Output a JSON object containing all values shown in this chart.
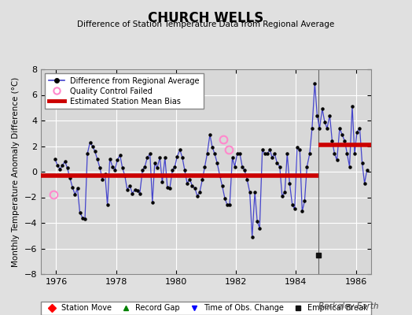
{
  "title": "CHURCH WELLS",
  "subtitle": "Difference of Station Temperature Data from Regional Average",
  "ylabel": "Monthly Temperature Anomaly Difference (°C)",
  "xlim": [
    1975.5,
    1986.5
  ],
  "ylim": [
    -8,
    8
  ],
  "yticks": [
    -8,
    -6,
    -4,
    -2,
    0,
    2,
    4,
    6,
    8
  ],
  "xticks": [
    1976,
    1978,
    1980,
    1982,
    1984,
    1986
  ],
  "fig_bg_color": "#e0e0e0",
  "plot_bg_color": "#d8d8d8",
  "line_color": "#4444cc",
  "marker_color": "#000000",
  "bias_color": "#cc0000",
  "bias_before": -0.3,
  "bias_after": 2.1,
  "break_x": 1984.75,
  "break_marker_x": 1984.75,
  "break_marker_y": -6.5,
  "qc_points": [
    [
      1975.92,
      -1.8
    ],
    [
      1981.58,
      2.55
    ],
    [
      1981.75,
      1.7
    ]
  ],
  "watermark": "Berkeley Earth",
  "time_series": [
    [
      1975.96,
      1.0
    ],
    [
      1976.04,
      0.5
    ],
    [
      1976.13,
      0.2
    ],
    [
      1976.21,
      0.5
    ],
    [
      1976.29,
      0.8
    ],
    [
      1976.37,
      0.3
    ],
    [
      1976.46,
      -0.5
    ],
    [
      1976.54,
      -1.2
    ],
    [
      1976.63,
      -1.8
    ],
    [
      1976.71,
      -1.3
    ],
    [
      1976.79,
      -3.2
    ],
    [
      1976.88,
      -3.6
    ],
    [
      1976.96,
      -3.7
    ],
    [
      1977.04,
      1.4
    ],
    [
      1977.13,
      2.3
    ],
    [
      1977.21,
      2.0
    ],
    [
      1977.29,
      1.6
    ],
    [
      1977.37,
      1.0
    ],
    [
      1977.46,
      0.3
    ],
    [
      1977.54,
      -0.6
    ],
    [
      1977.63,
      -0.2
    ],
    [
      1977.71,
      -2.6
    ],
    [
      1977.79,
      1.0
    ],
    [
      1977.88,
      0.4
    ],
    [
      1977.96,
      0.1
    ],
    [
      1978.04,
      0.9
    ],
    [
      1978.13,
      1.3
    ],
    [
      1978.21,
      0.3
    ],
    [
      1978.29,
      -0.3
    ],
    [
      1978.37,
      -1.4
    ],
    [
      1978.46,
      -1.1
    ],
    [
      1978.54,
      -1.7
    ],
    [
      1978.63,
      -1.4
    ],
    [
      1978.71,
      -1.5
    ],
    [
      1978.79,
      -1.7
    ],
    [
      1978.88,
      0.1
    ],
    [
      1978.96,
      0.4
    ],
    [
      1979.04,
      1.1
    ],
    [
      1979.13,
      1.4
    ],
    [
      1979.21,
      -2.4
    ],
    [
      1979.29,
      0.7
    ],
    [
      1979.37,
      0.3
    ],
    [
      1979.46,
      1.1
    ],
    [
      1979.54,
      -0.8
    ],
    [
      1979.63,
      1.1
    ],
    [
      1979.71,
      -1.2
    ],
    [
      1979.79,
      -1.3
    ],
    [
      1979.88,
      0.1
    ],
    [
      1979.96,
      0.4
    ],
    [
      1980.04,
      1.2
    ],
    [
      1980.13,
      1.7
    ],
    [
      1980.21,
      1.1
    ],
    [
      1980.29,
      0.1
    ],
    [
      1980.37,
      -0.9
    ],
    [
      1980.46,
      -0.6
    ],
    [
      1980.54,
      -1.1
    ],
    [
      1980.63,
      -1.3
    ],
    [
      1980.71,
      -1.9
    ],
    [
      1980.79,
      -1.6
    ],
    [
      1980.88,
      -0.6
    ],
    [
      1980.96,
      0.4
    ],
    [
      1981.04,
      1.4
    ],
    [
      1981.13,
      2.9
    ],
    [
      1981.21,
      1.9
    ],
    [
      1981.29,
      1.4
    ],
    [
      1981.37,
      0.7
    ],
    [
      1981.46,
      -0.3
    ],
    [
      1981.54,
      -1.1
    ],
    [
      1981.63,
      -2.1
    ],
    [
      1981.71,
      -2.6
    ],
    [
      1981.79,
      -2.6
    ],
    [
      1981.88,
      1.1
    ],
    [
      1981.96,
      0.4
    ],
    [
      1982.04,
      1.4
    ],
    [
      1982.13,
      1.4
    ],
    [
      1982.21,
      0.4
    ],
    [
      1982.29,
      0.1
    ],
    [
      1982.37,
      -0.6
    ],
    [
      1982.46,
      -1.6
    ],
    [
      1982.54,
      -5.1
    ],
    [
      1982.63,
      -1.6
    ],
    [
      1982.71,
      -3.9
    ],
    [
      1982.79,
      -4.4
    ],
    [
      1982.88,
      1.7
    ],
    [
      1982.96,
      1.4
    ],
    [
      1983.04,
      1.4
    ],
    [
      1983.13,
      1.7
    ],
    [
      1983.21,
      1.1
    ],
    [
      1983.29,
      1.4
    ],
    [
      1983.37,
      0.7
    ],
    [
      1983.46,
      0.4
    ],
    [
      1983.54,
      -1.9
    ],
    [
      1983.63,
      -1.6
    ],
    [
      1983.71,
      1.4
    ],
    [
      1983.79,
      -0.9
    ],
    [
      1983.88,
      -2.6
    ],
    [
      1983.96,
      -2.9
    ],
    [
      1984.04,
      1.9
    ],
    [
      1984.13,
      1.7
    ],
    [
      1984.21,
      -3.1
    ],
    [
      1984.29,
      -2.3
    ],
    [
      1984.37,
      0.4
    ],
    [
      1984.46,
      1.4
    ],
    [
      1984.54,
      3.4
    ],
    [
      1984.63,
      6.9
    ],
    [
      1984.71,
      4.4
    ],
    [
      1984.79,
      3.4
    ],
    [
      1984.88,
      4.9
    ],
    [
      1984.96,
      3.9
    ],
    [
      1985.04,
      3.4
    ],
    [
      1985.13,
      4.4
    ],
    [
      1985.21,
      2.4
    ],
    [
      1985.29,
      1.4
    ],
    [
      1985.37,
      0.9
    ],
    [
      1985.46,
      3.4
    ],
    [
      1985.54,
      2.9
    ],
    [
      1985.63,
      2.4
    ],
    [
      1985.71,
      1.4
    ],
    [
      1985.79,
      0.4
    ],
    [
      1985.88,
      5.1
    ],
    [
      1985.96,
      1.4
    ],
    [
      1986.04,
      3.1
    ],
    [
      1986.13,
      3.4
    ],
    [
      1986.21,
      0.7
    ],
    [
      1986.29,
      -0.9
    ],
    [
      1986.37,
      0.1
    ]
  ]
}
